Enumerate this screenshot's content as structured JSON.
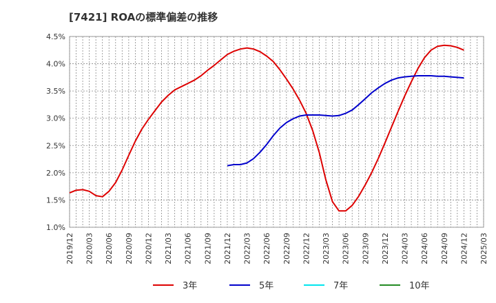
{
  "title": "[7421]  ROAの標準偏差の推移",
  "chart_data": {
    "type": "line",
    "ylim": [
      1.0,
      4.5
    ],
    "y_ticks": [
      "1.0%",
      "1.5%",
      "2.0%",
      "2.5%",
      "3.0%",
      "3.5%",
      "4.0%",
      "4.5%"
    ],
    "x_ticks": [
      "2019/12",
      "2020/03",
      "2020/06",
      "2020/09",
      "2020/12",
      "2021/03",
      "2021/06",
      "2021/09",
      "2021/12",
      "2022/03",
      "2022/06",
      "2022/09",
      "2022/12",
      "2023/03",
      "2023/06",
      "2023/09",
      "2023/12",
      "2024/03",
      "2024/06",
      "2024/09",
      "2024/12",
      "2025/03"
    ],
    "grid": true,
    "legend_position": "bottom",
    "series": [
      {
        "name": "3年",
        "color": "#dd0000",
        "x": [
          0,
          1,
          2,
          3,
          4,
          5,
          6,
          7,
          8,
          9,
          10,
          11,
          12,
          13,
          14,
          15,
          16,
          17,
          18,
          19,
          20,
          21,
          22,
          23,
          24,
          25,
          26,
          27,
          28,
          29,
          30,
          31,
          32,
          33,
          34,
          35,
          36,
          37,
          38,
          39,
          40,
          41,
          42,
          43,
          44,
          45,
          46,
          47,
          48,
          49,
          50,
          51,
          52,
          53,
          54,
          55,
          56,
          57,
          58,
          59,
          60
        ],
        "values": [
          1.63,
          1.68,
          1.69,
          1.66,
          1.58,
          1.56,
          1.66,
          1.82,
          2.05,
          2.32,
          2.58,
          2.8,
          2.98,
          3.14,
          3.3,
          3.42,
          3.52,
          3.58,
          3.64,
          3.7,
          3.78,
          3.88,
          3.97,
          4.07,
          4.17,
          4.23,
          4.27,
          4.29,
          4.27,
          4.22,
          4.14,
          4.04,
          3.89,
          3.72,
          3.54,
          3.33,
          3.09,
          2.77,
          2.37,
          1.87,
          1.47,
          1.3,
          1.3,
          1.4,
          1.57,
          1.78,
          2.01,
          2.27,
          2.55,
          2.84,
          3.13,
          3.41,
          3.67,
          3.91,
          4.11,
          4.25,
          4.32,
          4.34,
          4.33,
          4.3,
          4.25
        ]
      },
      {
        "name": "5年",
        "color": "#0000cc",
        "x": [
          24,
          25,
          26,
          27,
          28,
          29,
          30,
          31,
          32,
          33,
          34,
          35,
          36,
          37,
          38,
          39,
          40,
          41,
          42,
          43,
          44,
          45,
          46,
          47,
          48,
          49,
          50,
          51,
          52,
          53,
          54,
          55,
          56,
          57,
          58,
          59,
          60
        ],
        "values": [
          2.13,
          2.15,
          2.15,
          2.18,
          2.26,
          2.38,
          2.52,
          2.68,
          2.82,
          2.92,
          2.99,
          3.04,
          3.06,
          3.06,
          3.06,
          3.05,
          3.04,
          3.05,
          3.09,
          3.15,
          3.25,
          3.36,
          3.47,
          3.56,
          3.64,
          3.7,
          3.74,
          3.76,
          3.77,
          3.78,
          3.78,
          3.78,
          3.77,
          3.77,
          3.76,
          3.75,
          3.74
        ]
      },
      {
        "name": "7年",
        "color": "#00e5ee",
        "x": [],
        "values": []
      },
      {
        "name": "10年",
        "color": "#228b22",
        "x": [],
        "values": []
      }
    ]
  }
}
